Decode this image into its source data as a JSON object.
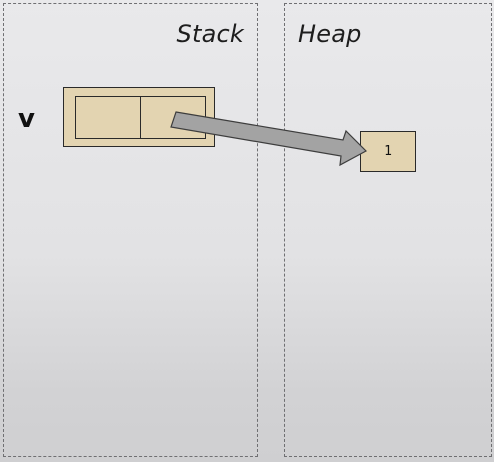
{
  "regions": {
    "stack_label": "Stack",
    "heap_label": "Heap"
  },
  "variable": {
    "name": "v"
  },
  "heap": {
    "value": "1"
  },
  "colors": {
    "box_fill": "#e3d4b1",
    "arrow_fill": "#a3a3a3",
    "border": "#2a2a2a",
    "dashed_border": "#6f6f72"
  }
}
